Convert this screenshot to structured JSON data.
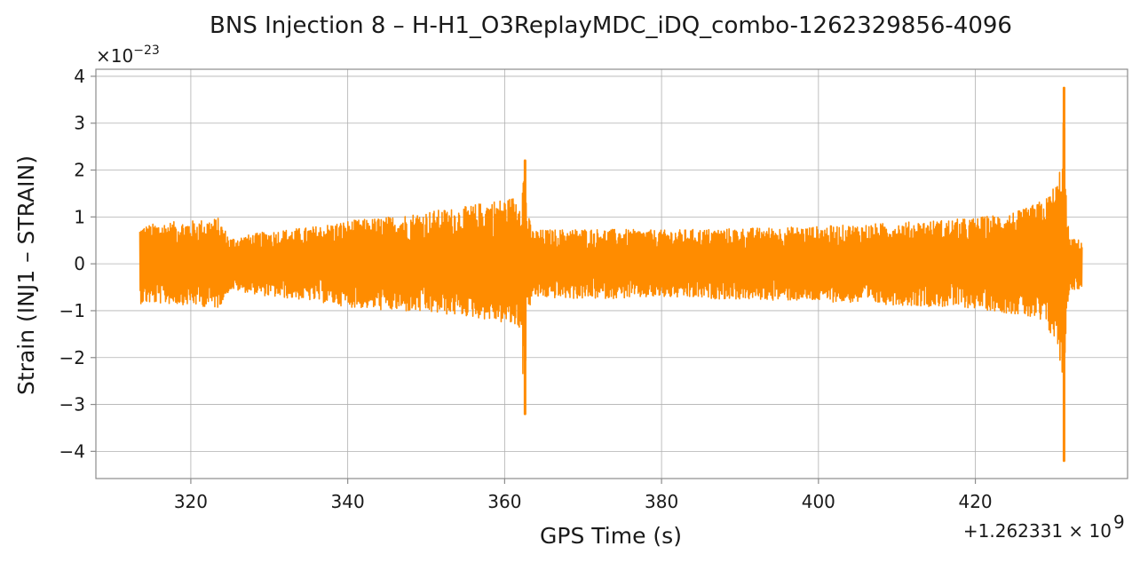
{
  "chart_data": {
    "type": "line",
    "title": "BNS Injection 8 – H-H1_O3ReplayMDC_iDQ_combo-1262329856-4096",
    "xlabel": "GPS Time (s)",
    "ylabel": "Strain (INJ1 – STRAIN)",
    "x_offset_label": "+1.262331 × 10",
    "x_offset_exp": "9",
    "y_scale_label": "×10",
    "y_scale_exp": "−23",
    "xlim": [
      307.9,
      439.4
    ],
    "ylim": [
      -4.58,
      4.15
    ],
    "x_ticks": [
      320,
      340,
      360,
      380,
      400,
      420
    ],
    "x_tick_labels": [
      "320",
      "340",
      "360",
      "380",
      "400",
      "420"
    ],
    "y_ticks": [
      -4,
      -3,
      -2,
      -1,
      0,
      1,
      2,
      3,
      4
    ],
    "y_tick_labels": [
      "−4",
      "−3",
      "−2",
      "−1",
      "0",
      "1",
      "2",
      "3",
      "4"
    ],
    "grid": true,
    "series": [
      {
        "color": "#ff8c00",
        "x_start": 313.5,
        "x_end": 433.6,
        "envelope": [
          [
            313.5,
            0.8
          ],
          [
            316.0,
            0.88
          ],
          [
            320.0,
            0.92
          ],
          [
            323.5,
            0.98
          ],
          [
            325.0,
            0.55
          ],
          [
            330.0,
            0.7
          ],
          [
            335.0,
            0.78
          ],
          [
            340.0,
            0.92
          ],
          [
            345.0,
            1.0
          ],
          [
            350.0,
            1.12
          ],
          [
            355.0,
            1.22
          ],
          [
            358.0,
            1.35
          ],
          [
            360.5,
            1.4
          ],
          [
            362.0,
            1.5
          ],
          [
            362.6,
            2.2
          ],
          [
            362.8,
            1.2
          ],
          [
            363.5,
            0.72
          ],
          [
            370.0,
            0.75
          ],
          [
            380.0,
            0.72
          ],
          [
            390.0,
            0.76
          ],
          [
            400.0,
            0.8
          ],
          [
            410.0,
            0.88
          ],
          [
            420.0,
            0.98
          ],
          [
            426.0,
            1.15
          ],
          [
            429.0,
            1.4
          ],
          [
            430.5,
            1.8
          ],
          [
            431.0,
            2.3
          ],
          [
            431.3,
            3.75
          ],
          [
            431.6,
            1.2
          ],
          [
            432.0,
            0.55
          ],
          [
            433.6,
            0.5
          ]
        ],
        "lower_envelope": [
          [
            313.5,
            -0.85
          ],
          [
            316.0,
            -0.85
          ],
          [
            320.0,
            -0.88
          ],
          [
            323.5,
            -0.95
          ],
          [
            325.0,
            -0.55
          ],
          [
            330.0,
            -0.7
          ],
          [
            335.0,
            -0.78
          ],
          [
            340.0,
            -0.92
          ],
          [
            345.0,
            -1.0
          ],
          [
            350.0,
            -1.05
          ],
          [
            355.0,
            -1.12
          ],
          [
            358.0,
            -1.2
          ],
          [
            360.5,
            -1.3
          ],
          [
            362.0,
            -1.4
          ],
          [
            362.6,
            -3.2
          ],
          [
            362.8,
            -1.2
          ],
          [
            363.5,
            -0.72
          ],
          [
            370.0,
            -0.75
          ],
          [
            380.0,
            -0.72
          ],
          [
            390.0,
            -0.76
          ],
          [
            400.0,
            -0.8
          ],
          [
            410.0,
            -0.88
          ],
          [
            420.0,
            -0.95
          ],
          [
            426.0,
            -1.1
          ],
          [
            429.0,
            -1.35
          ],
          [
            430.5,
            -1.8
          ],
          [
            431.0,
            -2.4
          ],
          [
            431.3,
            -4.2
          ],
          [
            431.6,
            -1.2
          ],
          [
            432.0,
            -0.55
          ],
          [
            433.6,
            -0.55
          ]
        ]
      }
    ]
  }
}
